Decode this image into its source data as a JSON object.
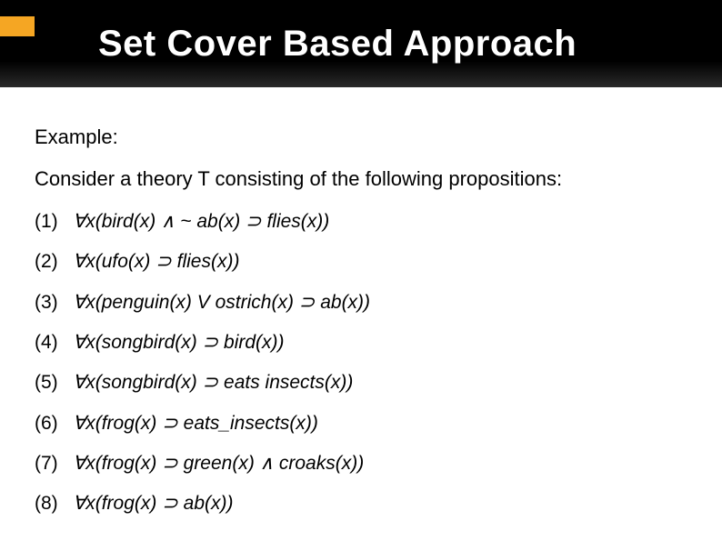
{
  "header": {
    "title": "Set Cover Based Approach",
    "accent_color": "#f5a623",
    "background_gradient": [
      "#000000",
      "#2a2a2a"
    ],
    "title_color": "#ffffff",
    "title_fontsize": 40
  },
  "body": {
    "example_label": "Example:",
    "intro_text": "Consider a theory T consisting of the following propositions:",
    "text_color": "#000000",
    "fontsize": 22,
    "propositions": [
      {
        "num": "(1)",
        "formula": "∀x(bird(x) ∧ ~ ab(x) ⊃ flies(x))"
      },
      {
        "num": "(2)",
        "formula": "∀x(ufo(x) ⊃ flies(x))"
      },
      {
        "num": "(3)",
        "formula": "∀x(penguin(x) V ostrich(x) ⊃ ab(x))"
      },
      {
        "num": "(4)",
        "formula": "∀x(songbird(x) ⊃ bird(x))"
      },
      {
        "num": "(5)",
        "formula": "∀x(songbird(x) ⊃ eats insects(x))"
      },
      {
        "num": "(6)",
        "formula": "∀x(frog(x) ⊃ eats_insects(x))"
      },
      {
        "num": "(7)",
        "formula": "∀x(frog(x) ⊃ green(x) ∧ croaks(x))"
      },
      {
        "num": "(8)",
        "formula": "∀x(frog(x) ⊃ ab(x))"
      }
    ]
  }
}
